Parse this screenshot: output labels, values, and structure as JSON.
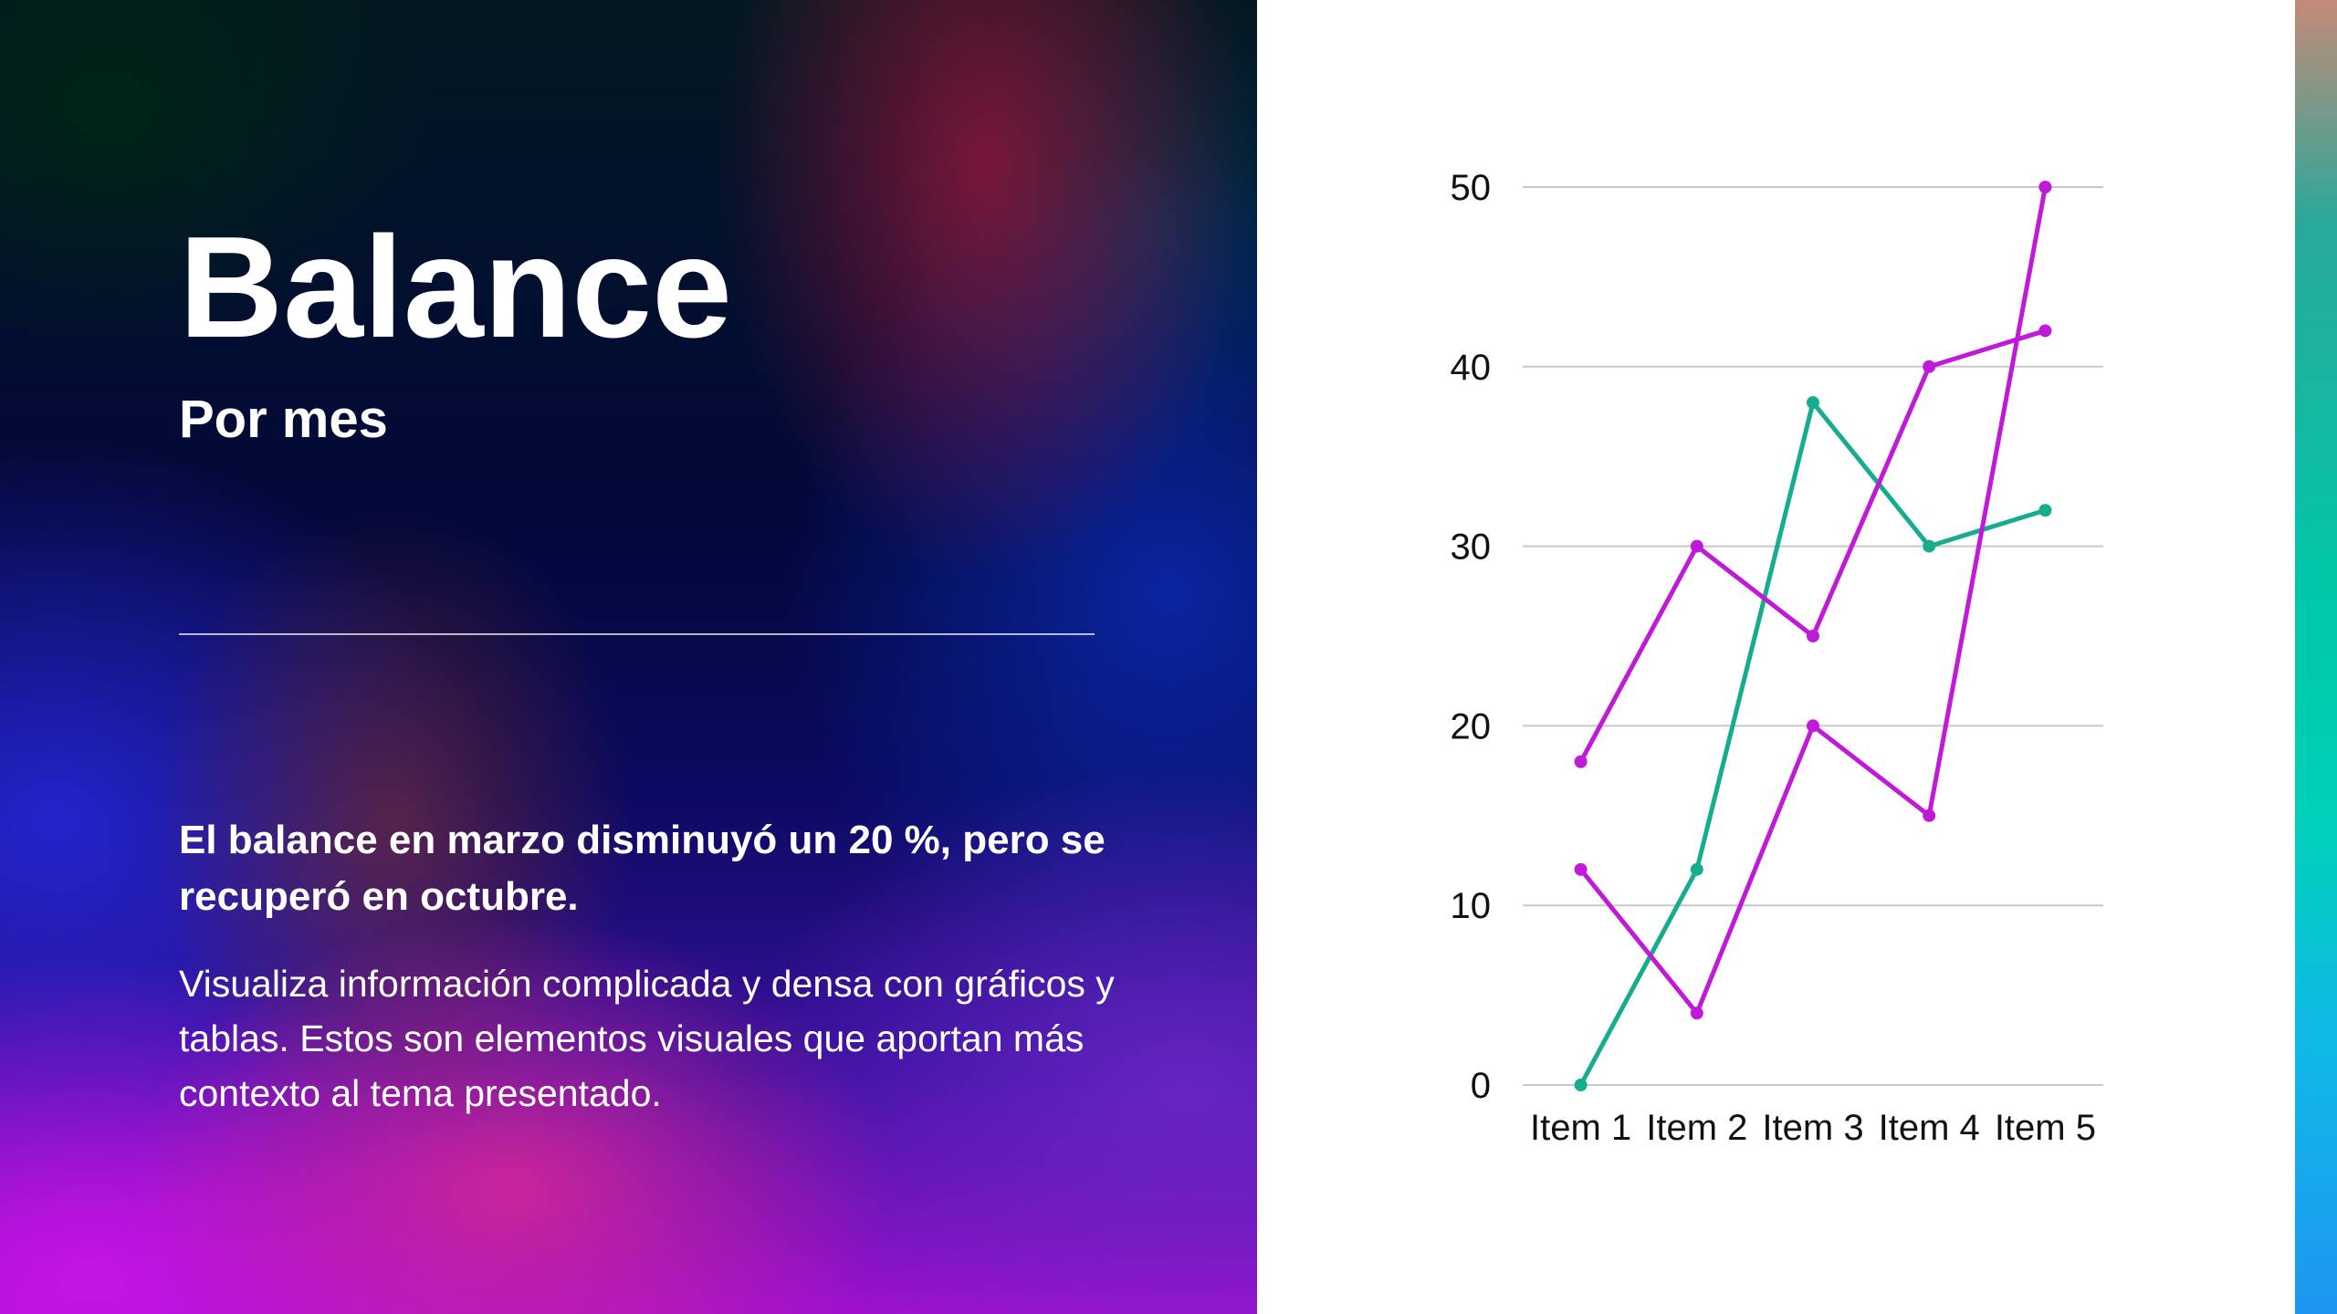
{
  "slide": {
    "title": "Balance",
    "subtitle": "Por mes",
    "highlight": "El balance en marzo disminuyó un 20 %, pero se recuperó en octubre.",
    "body": "Visualiza información complicada y densa con gráficos y tablas. Estos son elementos visuales que aportan más contexto al tema presentado."
  },
  "colors": {
    "series_teal": "#16ad8f",
    "series_magenta": "#c01ad8",
    "gridline": "#c8c8c8",
    "axis_text": "#111111"
  },
  "chart_data": {
    "type": "line",
    "title": "",
    "xlabel": "",
    "ylabel": "",
    "categories": [
      "Item 1",
      "Item 2",
      "Item 3",
      "Item 4",
      "Item 5"
    ],
    "ylim": [
      0,
      50
    ],
    "yticks": [
      0,
      10,
      20,
      30,
      40,
      50
    ],
    "grid": true,
    "legend": "none",
    "series": [
      {
        "values": [
          0,
          12,
          38,
          30,
          32
        ],
        "color": "#16ad8f"
      },
      {
        "values": [
          18,
          30,
          25,
          40,
          42
        ],
        "color": "#c01ad8"
      },
      {
        "values": [
          12,
          4,
          20,
          15,
          50
        ],
        "color": "#c01ad8"
      }
    ]
  }
}
